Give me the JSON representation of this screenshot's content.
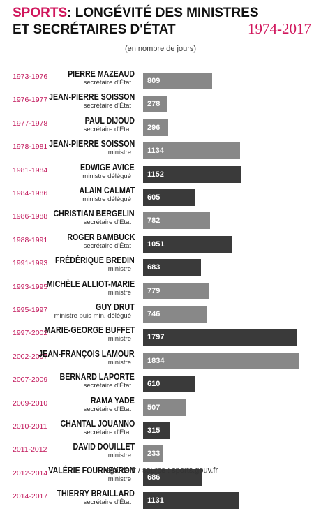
{
  "header": {
    "title_accent": "SPORTS",
    "title_rest": " : LONGÉVITÉ DES MINISTRES",
    "title_line2": "ET SECRÉTAIRES D'ÉTAT",
    "period": "1974-2017",
    "subtitle": "(en nombre de jours)"
  },
  "footer": "regards.fr / source : sports.gouv.fr",
  "colors": {
    "accent": "#d0165c",
    "secretary_bar": "#888888",
    "minister_bar": "#3a3a3a"
  },
  "chart_data": {
    "type": "bar",
    "orientation": "horizontal",
    "title": "SPORTS : LONGÉVITÉ DES MINISTRES ET SECRÉTAIRES D'ÉTAT 1974-2017",
    "subtitle": "(en nombre de jours)",
    "xlim": [
      0,
      1850
    ],
    "grid": false,
    "rows": [
      {
        "years": "1973-1976",
        "name": "PIERRE MAZEAUD",
        "role": "secrétaire d'État",
        "value": 809
      },
      {
        "years": "1976-1977",
        "name": "JEAN-PIERRE SOISSON",
        "role": "secrétaire d'État",
        "value": 278
      },
      {
        "years": "1977-1978",
        "name": "PAUL DIJOUD",
        "role": "secrétaire d'État",
        "value": 296
      },
      {
        "years": "1978-1981",
        "name": "JEAN-PIERRE SOISSON",
        "role": "ministre",
        "value": 1134
      },
      {
        "years": "1981-1984",
        "name": "EDWIGE AVICE",
        "role": "ministre délégué",
        "value": 1152
      },
      {
        "years": "1984-1986",
        "name": "ALAIN CALMAT",
        "role": "ministre délégué",
        "value": 605
      },
      {
        "years": "1986-1988",
        "name": "CHRISTIAN BERGELIN",
        "role": "secrétaire d'État",
        "value": 782
      },
      {
        "years": "1988-1991",
        "name": "ROGER BAMBUCK",
        "role": "secrétaire d'État",
        "value": 1051
      },
      {
        "years": "1991-1993",
        "name": "FRÉDÉRIQUE BREDIN",
        "role": "ministre",
        "value": 683
      },
      {
        "years": "1993-1995",
        "name": "MICHÈLE ALLIOT-MARIE",
        "role": "ministre",
        "value": 779
      },
      {
        "years": "1995-1997",
        "name": "GUY DRUT",
        "role": "ministre puis min. délégué",
        "value": 746
      },
      {
        "years": "1997-2002",
        "name": "MARIE-GEORGE BUFFET",
        "role": "ministre",
        "value": 1797
      },
      {
        "years": "2002-2007",
        "name": "JEAN-FRANÇOIS LAMOUR",
        "role": "ministre",
        "value": 1834
      },
      {
        "years": "2007-2009",
        "name": "BERNARD LAPORTE",
        "role": "secrétaire d'État",
        "value": 610
      },
      {
        "years": "2009-2010",
        "name": "RAMA YADE",
        "role": "secrétaire d'État",
        "value": 507
      },
      {
        "years": "2010-2011",
        "name": "CHANTAL JOUANNO",
        "role": "secrétaire d'État",
        "value": 315
      },
      {
        "years": "2011-2012",
        "name": "DAVID DOUILLET",
        "role": "ministre",
        "value": 233
      },
      {
        "years": "2012-2014",
        "name": "VALÉRIE FOURNEYRON",
        "role": "ministre",
        "value": 686
      },
      {
        "years": "2014-2017",
        "name": "THIERRY BRAILLARD",
        "role": "secrétaire d'État",
        "value": 1131
      }
    ],
    "shades": [
      "light",
      "light",
      "light",
      "light",
      "dark",
      "dark",
      "light",
      "dark",
      "dark",
      "light",
      "light",
      "dark",
      "light",
      "dark",
      "light",
      "dark",
      "light",
      "dark",
      "dark"
    ]
  }
}
